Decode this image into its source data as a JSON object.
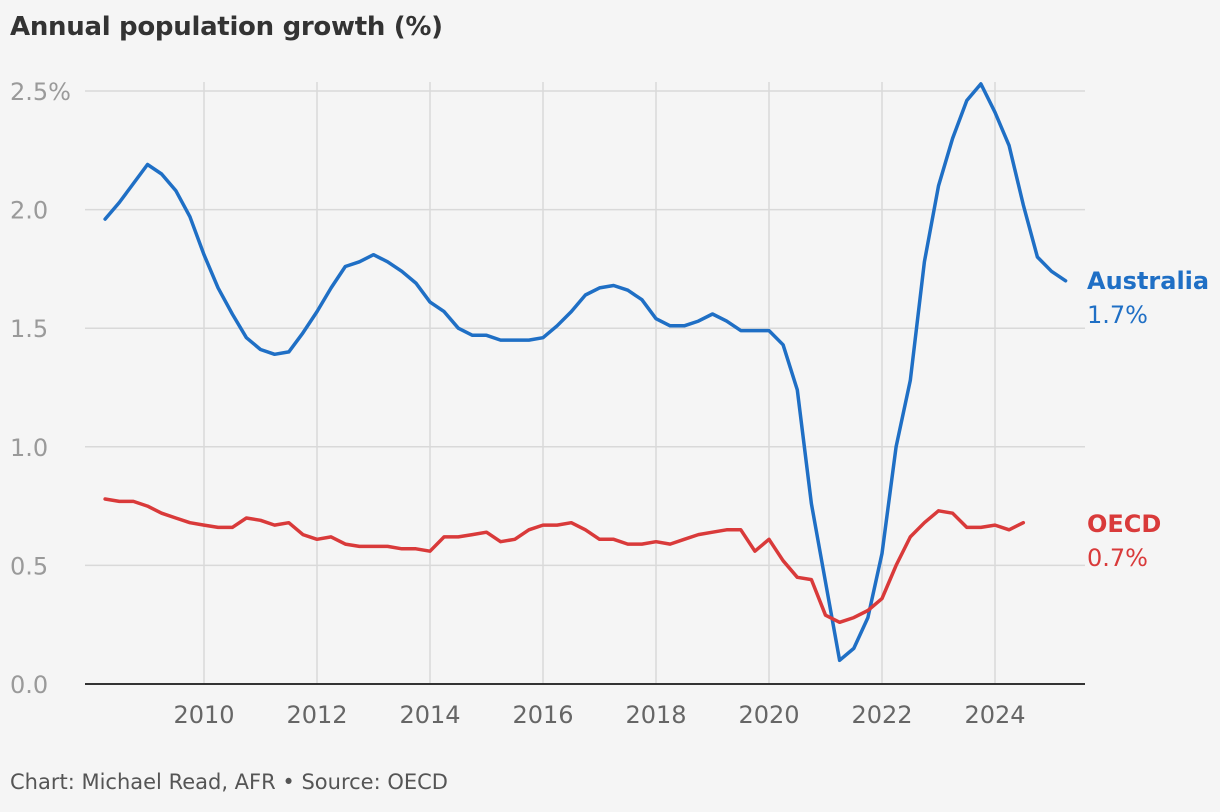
{
  "title": "Annual population growth (%)",
  "source_note": "Chart: Michael Read, AFR • Source: OECD",
  "chart_data": {
    "type": "line",
    "title": "Annual population growth (%)",
    "xlabel": "",
    "ylabel": "",
    "xlim": [
      2008.0,
      2025.5
    ],
    "ylim": [
      0,
      2.5
    ],
    "y_ticks": [
      0,
      0.5,
      1.0,
      1.5,
      2.0,
      2.5
    ],
    "y_tick_labels": [
      "0.0",
      "0.5",
      "1.0",
      "1.5",
      "2.0",
      "2.5%"
    ],
    "x_ticks": [
      2010,
      2012,
      2014,
      2016,
      2018,
      2020,
      2022,
      2024
    ],
    "x_tick_labels": [
      "2010",
      "2012",
      "2014",
      "2016",
      "2018",
      "2020",
      "2022",
      "2024"
    ],
    "grid": true,
    "legend": "direct-labels-right",
    "series": [
      {
        "name": "Australia",
        "end_label": "1.7%",
        "color": "#1f6fc5",
        "points": [
          [
            2008.25,
            1.96
          ],
          [
            2008.5,
            2.03
          ],
          [
            2008.75,
            2.11
          ],
          [
            2009.0,
            2.19
          ],
          [
            2009.25,
            2.15
          ],
          [
            2009.5,
            2.08
          ],
          [
            2009.75,
            1.97
          ],
          [
            2010.0,
            1.81
          ],
          [
            2010.25,
            1.67
          ],
          [
            2010.5,
            1.56
          ],
          [
            2010.75,
            1.46
          ],
          [
            2011.0,
            1.41
          ],
          [
            2011.25,
            1.39
          ],
          [
            2011.5,
            1.4
          ],
          [
            2011.75,
            1.48
          ],
          [
            2012.0,
            1.57
          ],
          [
            2012.25,
            1.67
          ],
          [
            2012.5,
            1.76
          ],
          [
            2012.75,
            1.78
          ],
          [
            2013.0,
            1.81
          ],
          [
            2013.25,
            1.78
          ],
          [
            2013.5,
            1.74
          ],
          [
            2013.75,
            1.69
          ],
          [
            2014.0,
            1.61
          ],
          [
            2014.25,
            1.57
          ],
          [
            2014.5,
            1.5
          ],
          [
            2014.75,
            1.47
          ],
          [
            2015.0,
            1.47
          ],
          [
            2015.25,
            1.45
          ],
          [
            2015.5,
            1.45
          ],
          [
            2015.75,
            1.45
          ],
          [
            2016.0,
            1.46
          ],
          [
            2016.25,
            1.51
          ],
          [
            2016.5,
            1.57
          ],
          [
            2016.75,
            1.64
          ],
          [
            2017.0,
            1.67
          ],
          [
            2017.25,
            1.68
          ],
          [
            2017.5,
            1.66
          ],
          [
            2017.75,
            1.62
          ],
          [
            2018.0,
            1.54
          ],
          [
            2018.25,
            1.51
          ],
          [
            2018.5,
            1.51
          ],
          [
            2018.75,
            1.53
          ],
          [
            2019.0,
            1.56
          ],
          [
            2019.25,
            1.53
          ],
          [
            2019.5,
            1.49
          ],
          [
            2019.75,
            1.49
          ],
          [
            2020.0,
            1.49
          ],
          [
            2020.25,
            1.43
          ],
          [
            2020.5,
            1.24
          ],
          [
            2020.75,
            0.76
          ],
          [
            2021.0,
            0.43
          ],
          [
            2021.25,
            0.1
          ],
          [
            2021.5,
            0.15
          ],
          [
            2021.75,
            0.28
          ],
          [
            2022.0,
            0.55
          ],
          [
            2022.25,
            1.0
          ],
          [
            2022.5,
            1.28
          ],
          [
            2022.75,
            1.78
          ],
          [
            2023.0,
            2.1
          ],
          [
            2023.25,
            2.3
          ],
          [
            2023.5,
            2.46
          ],
          [
            2023.75,
            2.53
          ],
          [
            2024.0,
            2.41
          ],
          [
            2024.25,
            2.27
          ],
          [
            2024.5,
            2.02
          ],
          [
            2024.75,
            1.8
          ],
          [
            2025.0,
            1.74
          ],
          [
            2025.25,
            1.7
          ]
        ]
      },
      {
        "name": "OECD",
        "end_label": "0.7%",
        "color": "#d93a3a",
        "points": [
          [
            2008.25,
            0.78
          ],
          [
            2008.5,
            0.77
          ],
          [
            2008.75,
            0.77
          ],
          [
            2009.0,
            0.75
          ],
          [
            2009.25,
            0.72
          ],
          [
            2009.5,
            0.7
          ],
          [
            2009.75,
            0.68
          ],
          [
            2010.0,
            0.67
          ],
          [
            2010.25,
            0.66
          ],
          [
            2010.5,
            0.66
          ],
          [
            2010.75,
            0.7
          ],
          [
            2011.0,
            0.69
          ],
          [
            2011.25,
            0.67
          ],
          [
            2011.5,
            0.68
          ],
          [
            2011.75,
            0.63
          ],
          [
            2012.0,
            0.61
          ],
          [
            2012.25,
            0.62
          ],
          [
            2012.5,
            0.59
          ],
          [
            2012.75,
            0.58
          ],
          [
            2013.0,
            0.58
          ],
          [
            2013.25,
            0.58
          ],
          [
            2013.5,
            0.57
          ],
          [
            2013.75,
            0.57
          ],
          [
            2014.0,
            0.56
          ],
          [
            2014.25,
            0.62
          ],
          [
            2014.5,
            0.62
          ],
          [
            2014.75,
            0.63
          ],
          [
            2015.0,
            0.64
          ],
          [
            2015.25,
            0.6
          ],
          [
            2015.5,
            0.61
          ],
          [
            2015.75,
            0.65
          ],
          [
            2016.0,
            0.67
          ],
          [
            2016.25,
            0.67
          ],
          [
            2016.5,
            0.68
          ],
          [
            2016.75,
            0.65
          ],
          [
            2017.0,
            0.61
          ],
          [
            2017.25,
            0.61
          ],
          [
            2017.5,
            0.59
          ],
          [
            2017.75,
            0.59
          ],
          [
            2018.0,
            0.6
          ],
          [
            2018.25,
            0.59
          ],
          [
            2018.5,
            0.61
          ],
          [
            2018.75,
            0.63
          ],
          [
            2019.0,
            0.64
          ],
          [
            2019.25,
            0.65
          ],
          [
            2019.5,
            0.65
          ],
          [
            2019.75,
            0.56
          ],
          [
            2020.0,
            0.61
          ],
          [
            2020.25,
            0.52
          ],
          [
            2020.5,
            0.45
          ],
          [
            2020.75,
            0.44
          ],
          [
            2021.0,
            0.29
          ],
          [
            2021.25,
            0.26
          ],
          [
            2021.5,
            0.28
          ],
          [
            2021.75,
            0.31
          ],
          [
            2022.0,
            0.36
          ],
          [
            2022.25,
            0.5
          ],
          [
            2022.5,
            0.62
          ],
          [
            2022.75,
            0.68
          ],
          [
            2023.0,
            0.73
          ],
          [
            2023.25,
            0.72
          ],
          [
            2023.5,
            0.66
          ],
          [
            2023.75,
            0.66
          ],
          [
            2024.0,
            0.67
          ],
          [
            2024.25,
            0.65
          ],
          [
            2024.5,
            0.68
          ]
        ]
      }
    ]
  }
}
